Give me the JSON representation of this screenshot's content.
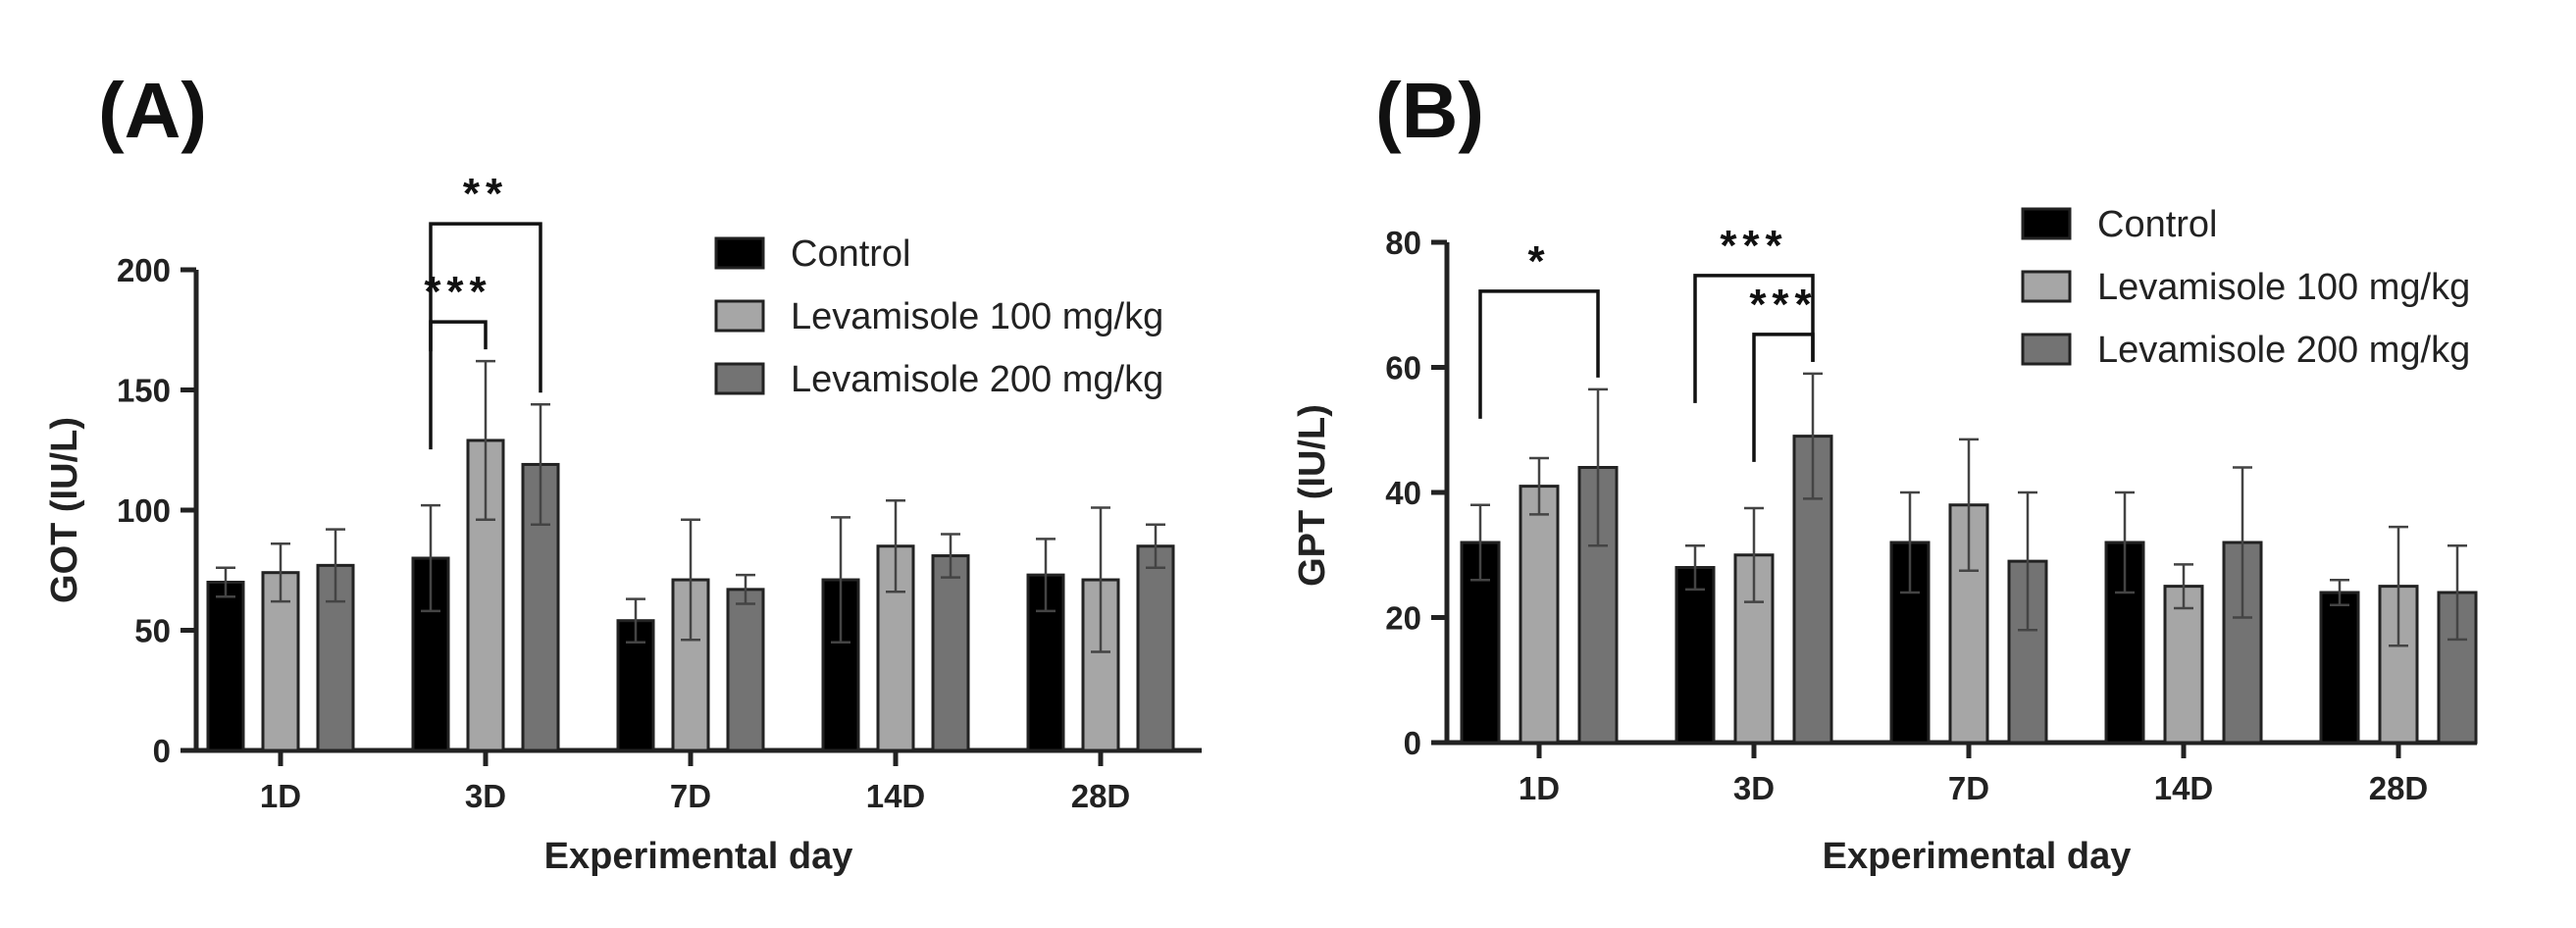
{
  "chart_data": [
    {
      "type": "bar",
      "panel_label": "(A)",
      "title": "",
      "xlabel": "Experimental day",
      "ylabel": "GOT (IU/L)",
      "ylim": [
        0,
        200
      ],
      "yticks": [
        0,
        50,
        100,
        150,
        200
      ],
      "grid": false,
      "legend_position": "top-right",
      "categories": [
        "1D",
        "3D",
        "7D",
        "14D",
        "28D"
      ],
      "series": [
        {
          "name": "Control",
          "color": "#000000",
          "values": [
            70,
            80,
            54,
            71,
            73
          ],
          "errors": [
            6,
            22,
            9,
            26,
            15
          ]
        },
        {
          "name": "Levamisole 100 mg/kg",
          "color": "#a6a6a6",
          "values": [
            74,
            129,
            71,
            85,
            71
          ],
          "errors": [
            12,
            33,
            25,
            19,
            30
          ]
        },
        {
          "name": "Levamisole 200 mg/kg",
          "color": "#737373",
          "values": [
            77,
            119,
            67,
            81,
            85
          ],
          "errors": [
            15,
            25,
            6,
            9,
            9
          ]
        }
      ],
      "annotations": [
        {
          "category": "3D",
          "from_series": 0,
          "to_series": 1,
          "label": "***"
        },
        {
          "category": "3D",
          "from_series": 0,
          "to_series": 2,
          "label": "**"
        }
      ]
    },
    {
      "type": "bar",
      "panel_label": "(B)",
      "title": "",
      "xlabel": "Experimental day",
      "ylabel": "GPT (IU/L)",
      "ylim": [
        0,
        80
      ],
      "yticks": [
        0,
        20,
        40,
        60,
        80
      ],
      "grid": false,
      "legend_position": "top-right",
      "categories": [
        "1D",
        "3D",
        "7D",
        "14D",
        "28D"
      ],
      "series": [
        {
          "name": "Control",
          "color": "#000000",
          "values": [
            32,
            28,
            32,
            32,
            24
          ],
          "errors": [
            6,
            3.5,
            8,
            8,
            2
          ]
        },
        {
          "name": "Levamisole 100 mg/kg",
          "color": "#a6a6a6",
          "values": [
            41,
            30,
            38,
            25,
            25
          ],
          "errors": [
            4.5,
            7.5,
            10.5,
            3.5,
            9.5
          ]
        },
        {
          "name": "Levamisole 200 mg/kg",
          "color": "#737373",
          "values": [
            44,
            49,
            29,
            32,
            24
          ],
          "errors": [
            12.5,
            10,
            11,
            12,
            7.5
          ]
        }
      ],
      "annotations": [
        {
          "category": "1D",
          "from_series": 0,
          "to_series": 2,
          "label": "*"
        },
        {
          "category": "3D",
          "from_series": 0,
          "to_series": 2,
          "label": "***"
        },
        {
          "category": "3D",
          "from_series": 1,
          "to_series": 2,
          "label": "***"
        }
      ]
    }
  ]
}
